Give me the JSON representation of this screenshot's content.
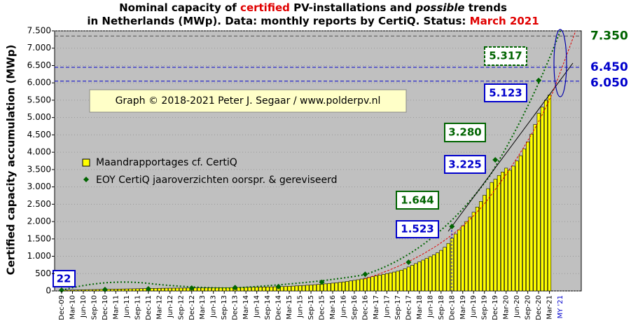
{
  "chart_data": {
    "type": "bar",
    "title_line1": [
      "Nominal capacity of ",
      "certified",
      " PV-installations and ",
      "possible",
      " trends"
    ],
    "title_line2": [
      "in Netherlands (MWp). Data: monthly reports by CertiQ. Status: ",
      "March 2021"
    ],
    "y_label": "Certified capacity accumulation (MWp)",
    "credit": "Graph © 2018-2021 Peter J. Segaar / www.polderpv.nl",
    "categories": [
      "Dec-09",
      null,
      null,
      "Mar-10",
      null,
      null,
      "Jun-10",
      null,
      null,
      "Sep-10",
      null,
      null,
      "Dec-10",
      null,
      null,
      "Mar-11",
      null,
      null,
      "Jun-11",
      null,
      null,
      "Sep-11",
      null,
      null,
      "Dec-11",
      null,
      null,
      "Mar-12",
      null,
      null,
      "Jun-12",
      null,
      null,
      "Sep-12",
      null,
      null,
      "Dec-12",
      null,
      null,
      "Mar-13",
      null,
      null,
      "Jun-13",
      null,
      null,
      "Sep-13",
      null,
      null,
      "Dec-13",
      null,
      null,
      "Mar-14",
      null,
      null,
      "Jun-14",
      null,
      null,
      "Sep-14",
      null,
      null,
      "Dec-14",
      null,
      null,
      "Mar-15",
      null,
      null,
      "Jun-15",
      null,
      null,
      "Sep-15",
      null,
      null,
      "Dec-15",
      null,
      null,
      "Mar-16",
      null,
      null,
      "Jun-16",
      null,
      null,
      "Sep-16",
      null,
      null,
      "Dec-16",
      null,
      null,
      "Mar-17",
      null,
      null,
      "Jun-17",
      null,
      null,
      "Sep-17",
      null,
      null,
      "Dec-17",
      null,
      null,
      "Mar-18",
      null,
      null,
      "Jun-18",
      null,
      null,
      "Sep-18",
      null,
      null,
      "Dec-18",
      null,
      null,
      "Mar-19",
      null,
      null,
      "Jun-19",
      null,
      null,
      "Sep-19",
      null,
      null,
      "Dec-19",
      null,
      null,
      "Mar-20",
      null,
      null,
      "Jun-20",
      null,
      null,
      "Sep-20",
      null,
      null,
      "Dec-20",
      null,
      null,
      "Mar-21"
    ],
    "forecast_label": "MY '21",
    "series": [
      {
        "name": "Maandrapportages cf. CertiQ",
        "color": "#ffff00",
        "values": [
          22,
          24,
          26,
          28,
          30,
          32,
          34,
          36,
          38,
          40,
          42,
          44,
          46,
          48,
          50,
          52,
          54,
          56,
          58,
          60,
          62,
          64,
          66,
          68,
          70,
          72,
          74,
          76,
          78,
          79,
          80,
          81,
          82,
          83,
          84,
          85,
          86,
          87,
          88,
          89,
          90,
          91,
          92,
          93,
          94,
          95,
          96,
          97,
          98,
          100,
          102,
          104,
          106,
          108,
          110,
          112,
          114,
          116,
          118,
          120,
          122,
          126,
          130,
          135,
          140,
          146,
          152,
          158,
          165,
          172,
          180,
          188,
          196,
          205,
          215,
          225,
          236,
          248,
          260,
          274,
          290,
          306,
          324,
          344,
          366,
          390,
          412,
          434,
          456,
          478,
          500,
          522,
          545,
          570,
          600,
          640,
          690,
          740,
          790,
          840,
          890,
          940,
          990,
          1040,
          1100,
          1170,
          1260,
          1370,
          1523,
          1640,
          1760,
          1880,
          2000,
          2130,
          2270,
          2420,
          2580,
          2760,
          2950,
          3130,
          3225,
          3330,
          3430,
          3540,
          3480,
          3600,
          3750,
          3900,
          4100,
          4300,
          4520,
          4800,
          5123,
          5300,
          5500,
          5650
        ]
      },
      {
        "name": "EOY CertiQ jaaroverzichten oorspr. & gereviseerd",
        "type": "scatter",
        "color": "#006400",
        "x": [
          "Dec-09",
          "Dec-10",
          "Dec-11",
          "Dec-12",
          "Dec-13",
          "Dec-14",
          "Dec-15",
          "Dec-16",
          "Dec-17",
          "Dec-18",
          "Dec-19",
          "Dec-20"
        ],
        "values": [
          22,
          40,
          60,
          80,
          95,
          125,
          250,
          480,
          830,
          1860,
          3780,
          6070
        ]
      }
    ],
    "ylim": [
      0,
      7500
    ],
    "yticks": [
      0,
      {
        "value": 500,
        "label": "500"
      },
      {
        "value": 1000,
        "label": "1.000"
      },
      {
        "value": 1500,
        "label": "1.500"
      },
      {
        "value": 2000,
        "label": "2.000"
      },
      {
        "value": 2500,
        "label": "2.500"
      },
      {
        "value": 3000,
        "label": "3.000"
      },
      {
        "value": 3500,
        "label": "3.500"
      },
      {
        "value": 4000,
        "label": "4.000"
      },
      {
        "value": 4500,
        "label": "4.500"
      },
      {
        "value": 5000,
        "label": "5.000"
      },
      {
        "value": 5500,
        "label": "5.500"
      },
      {
        "value": 6000,
        "label": "6.000"
      },
      {
        "value": 6500,
        "label": "6.500"
      },
      {
        "value": 7000,
        "label": "7.000"
      },
      {
        "value": 7500,
        "label": "7.500"
      }
    ],
    "reference_lines": [
      {
        "value": 7350,
        "label": "7.350",
        "color": "#006400",
        "line_color": "#555555"
      },
      {
        "value": 6450,
        "label": "6.450",
        "color": "#0000cc",
        "line_color": "#0000cc"
      },
      {
        "value": 6050,
        "label": "6.050",
        "color": "#0000cc",
        "line_color": "#0000cc"
      }
    ],
    "annotations": [
      {
        "value": 22,
        "label": "22"
      },
      {
        "value": 1644,
        "label": "1.644"
      },
      {
        "value": 1523,
        "label": "1.523"
      },
      {
        "value": 3280,
        "label": "3.280"
      },
      {
        "value": 3225,
        "label": "3.225"
      },
      {
        "value": 5123,
        "label": "5.123"
      },
      {
        "value": 5317,
        "label": "5.317"
      }
    ]
  }
}
